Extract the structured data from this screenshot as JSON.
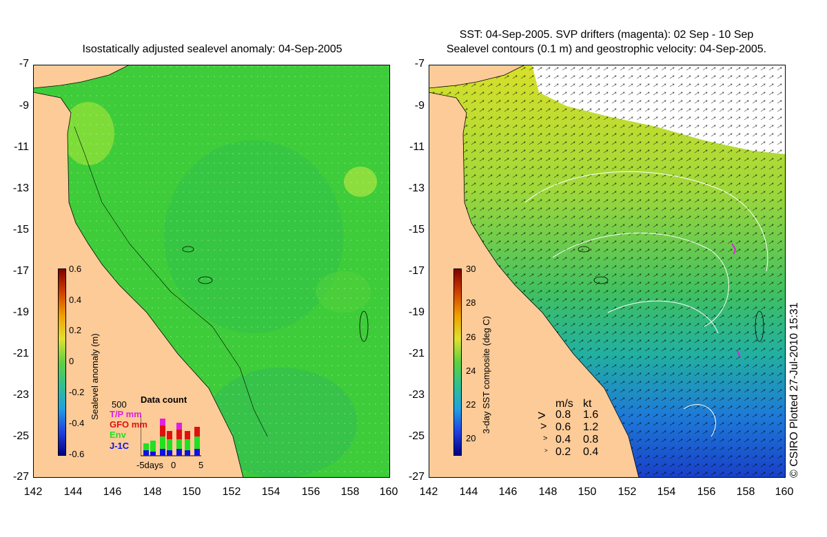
{
  "left_panel": {
    "title": "Isostatically adjusted sealevel anomaly: 04-Sep-2005",
    "colorbar": {
      "label": "Sealevel anomaly (m)",
      "ticks": [
        "0.6",
        "0.4",
        "0.2",
        "0",
        "-0.2",
        "-0.4",
        "-0.6"
      ],
      "range": [
        -0.6,
        0.6
      ]
    },
    "data_count": {
      "title": "Data count",
      "max_label": "500",
      "legend": [
        {
          "label": "T/P mm",
          "color": "#e020e0"
        },
        {
          "label": "GFO mm",
          "color": "#e01010"
        },
        {
          "label": "Env",
          "color": "#20e020"
        },
        {
          "label": "J-1C",
          "color": "#1010e0"
        }
      ],
      "x_labels": [
        "-5days",
        "0",
        "5"
      ]
    }
  },
  "right_panel": {
    "title_line1": "SST: 04-Sep-2005. SVP drifters (magenta): 02 Sep - 10 Sep",
    "title_line2": "Sealevel contours (0.1 m) and geostrophic velocity: 04-Sep-2005.",
    "colorbar": {
      "label": "3-day SST composite (deg C)",
      "ticks": [
        "30",
        "28",
        "26",
        "24",
        "22",
        "20"
      ],
      "range": [
        19,
        30
      ]
    },
    "speed_legend": {
      "header_ms": "m/s",
      "header_kt": "kt",
      "rows": [
        {
          "ms": "0.8",
          "kt": "1.6"
        },
        {
          "ms": "0.6",
          "kt": "1.2"
        },
        {
          "ms": "0.4",
          "kt": "0.8"
        },
        {
          "ms": "0.2",
          "kt": "0.4"
        }
      ]
    },
    "credit": "© CSIRO Plotted 27-Jul-2010 15:31"
  },
  "axes": {
    "lon_labels": [
      "142",
      "144",
      "146",
      "148",
      "150",
      "152",
      "154",
      "156",
      "158",
      "160"
    ],
    "lat_labels": [
      "-7",
      "-9",
      "-11",
      "-13",
      "-15",
      "-17",
      "-19",
      "-21",
      "-23",
      "-25",
      "-27"
    ],
    "lon_range": [
      142,
      160
    ],
    "lat_range": [
      -27,
      -7
    ]
  },
  "colors": {
    "land": "#fccb98",
    "ocean_green": "#3ecc3a",
    "white": "#ffffff"
  }
}
